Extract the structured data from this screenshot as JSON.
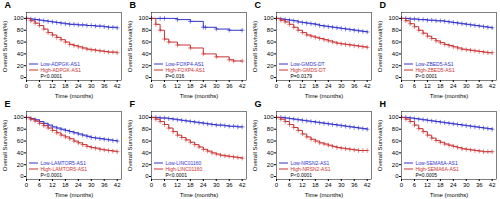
{
  "chart_data": [
    {
      "type": "line",
      "title": "A",
      "xlabel": "Time (months)",
      "ylabel": "Overall Survival(%)",
      "xlim": [
        0,
        44
      ],
      "ylim": [
        -5,
        110
      ],
      "xticks": [
        0,
        6,
        12,
        18,
        24,
        30,
        36,
        42
      ],
      "yticks": [
        0,
        20,
        40,
        60,
        80,
        100
      ],
      "line_style": "steps",
      "marker": "plus",
      "legend": "lower left",
      "annotation": "P<0.0001",
      "series": [
        {
          "name": "Low-ADPGK-AS1",
          "color": "#3333cc",
          "x": [
            0,
            2,
            4,
            6,
            8,
            10,
            12,
            14,
            16,
            18,
            20,
            22,
            24,
            26,
            28,
            30,
            32,
            34,
            36,
            38,
            40,
            42
          ],
          "values": [
            100,
            99,
            98,
            97,
            96,
            95,
            94,
            93,
            92,
            91,
            90,
            90,
            89,
            89,
            88,
            88,
            87,
            87,
            86,
            85,
            85,
            84
          ]
        },
        {
          "name": "High-ADPGK-AS1",
          "color": "#cc3333",
          "x": [
            0,
            2,
            4,
            6,
            8,
            10,
            12,
            14,
            16,
            18,
            20,
            22,
            24,
            26,
            28,
            30,
            32,
            34,
            36,
            38,
            40,
            42
          ],
          "values": [
            100,
            96,
            92,
            88,
            82,
            76,
            72,
            68,
            64,
            60,
            56,
            54,
            52,
            50,
            48,
            47,
            46,
            45,
            44,
            43,
            43,
            42
          ]
        }
      ]
    },
    {
      "type": "line",
      "title": "B",
      "xlabel": "Time (months)",
      "ylabel": "Overall Survival(%)",
      "xlim": [
        0,
        44
      ],
      "ylim": [
        -5,
        110
      ],
      "xticks": [
        0,
        6,
        12,
        18,
        24,
        30,
        36,
        42
      ],
      "yticks": [
        0,
        20,
        40,
        60,
        80,
        100
      ],
      "line_style": "steps",
      "marker": "plus",
      "legend": "lower left",
      "annotation": "P=0.016",
      "series": [
        {
          "name": "Low-FOXP4-AS1",
          "color": "#3333cc",
          "x": [
            0,
            4,
            6,
            12,
            18,
            24,
            25,
            30,
            36,
            42
          ],
          "values": [
            100,
            100,
            100,
            98,
            95,
            85,
            85,
            82,
            80,
            80
          ]
        },
        {
          "name": "High-FOXP4-AS1",
          "color": "#cc3333",
          "x": [
            0,
            2,
            4,
            6,
            8,
            12,
            18,
            24,
            30,
            36,
            38,
            42
          ],
          "values": [
            100,
            90,
            80,
            65,
            60,
            55,
            50,
            40,
            35,
            30,
            28,
            28
          ]
        }
      ]
    },
    {
      "type": "line",
      "title": "C",
      "xlabel": "Time (months)",
      "ylabel": "Overall Survival(%)",
      "xlim": [
        0,
        44
      ],
      "ylim": [
        -5,
        110
      ],
      "xticks": [
        0,
        6,
        12,
        18,
        24,
        30,
        36,
        42
      ],
      "yticks": [
        0,
        20,
        40,
        60,
        80,
        100
      ],
      "line_style": "steps",
      "marker": "plus",
      "legend": "lower left",
      "annotation": "P=0.0179",
      "series": [
        {
          "name": "Low-GMDS-DT",
          "color": "#3333cc",
          "x": [
            0,
            2,
            4,
            6,
            8,
            10,
            12,
            14,
            16,
            18,
            20,
            22,
            24,
            26,
            28,
            30,
            32,
            34,
            36,
            38,
            40,
            42
          ],
          "values": [
            100,
            99,
            98,
            97,
            96,
            94,
            93,
            92,
            91,
            90,
            88,
            87,
            86,
            85,
            84,
            83,
            82,
            81,
            80,
            79,
            78,
            77
          ]
        },
        {
          "name": "High-GMDS-DT",
          "color": "#cc3333",
          "x": [
            0,
            2,
            4,
            6,
            8,
            10,
            12,
            14,
            16,
            18,
            20,
            22,
            24,
            26,
            28,
            30,
            32,
            34,
            36,
            38,
            40,
            42
          ],
          "values": [
            100,
            97,
            94,
            90,
            85,
            80,
            76,
            72,
            70,
            68,
            66,
            64,
            62,
            60,
            58,
            57,
            56,
            55,
            54,
            53,
            52,
            51
          ]
        }
      ]
    },
    {
      "type": "line",
      "title": "D",
      "xlabel": "Time (months)",
      "ylabel": "Overall Survival(%)",
      "xlim": [
        0,
        44
      ],
      "ylim": [
        -5,
        110
      ],
      "xticks": [
        0,
        6,
        12,
        18,
        24,
        30,
        36,
        42
      ],
      "yticks": [
        0,
        20,
        40,
        60,
        80,
        100
      ],
      "line_style": "steps",
      "marker": "plus",
      "legend": "lower left",
      "annotation": "P<0.0001",
      "series": [
        {
          "name": "Low-ZBED5-AS1",
          "color": "#3333cc",
          "x": [
            0,
            2,
            4,
            6,
            8,
            10,
            12,
            14,
            16,
            18,
            20,
            22,
            24,
            26,
            28,
            30,
            32,
            34,
            36,
            38,
            40,
            42
          ],
          "values": [
            100,
            100,
            99,
            99,
            98,
            98,
            97,
            97,
            96,
            96,
            95,
            94,
            93,
            92,
            91,
            90,
            89,
            88,
            87,
            86,
            85,
            84
          ]
        },
        {
          "name": "High-ZBED5-AS1",
          "color": "#cc3333",
          "x": [
            0,
            2,
            4,
            6,
            8,
            10,
            12,
            14,
            16,
            18,
            20,
            22,
            24,
            26,
            28,
            30,
            32,
            34,
            36,
            38,
            40,
            42
          ],
          "values": [
            100,
            96,
            91,
            86,
            80,
            75,
            70,
            66,
            62,
            59,
            56,
            54,
            52,
            50,
            48,
            47,
            46,
            45,
            44,
            43,
            42,
            42
          ]
        }
      ]
    },
    {
      "type": "line",
      "title": "E",
      "xlabel": "Time (months)",
      "ylabel": "Overall Survival(%)",
      "xlim": [
        0,
        44
      ],
      "ylim": [
        -5,
        110
      ],
      "xticks": [
        0,
        6,
        12,
        18,
        24,
        30,
        36,
        42
      ],
      "yticks": [
        0,
        20,
        40,
        60,
        80,
        100
      ],
      "line_style": "steps",
      "marker": "plus",
      "legend": "lower left",
      "annotation": "P<0.0001",
      "series": [
        {
          "name": "Low-LAMTOR5-AS1",
          "color": "#3333cc",
          "x": [
            0,
            2,
            4,
            6,
            8,
            10,
            12,
            14,
            16,
            18,
            20,
            22,
            24,
            26,
            28,
            30,
            32,
            34,
            36,
            38,
            40,
            42
          ],
          "values": [
            100,
            98,
            96,
            93,
            90,
            87,
            84,
            82,
            80,
            78,
            76,
            74,
            72,
            70,
            68,
            66,
            65,
            64,
            63,
            62,
            61,
            60
          ]
        },
        {
          "name": "High-LAMTOR5-AS1",
          "color": "#cc3333",
          "x": [
            0,
            2,
            4,
            6,
            8,
            10,
            12,
            14,
            16,
            18,
            20,
            22,
            24,
            26,
            28,
            30,
            32,
            34,
            36,
            38,
            40,
            42
          ],
          "values": [
            100,
            97,
            94,
            90,
            86,
            82,
            78,
            74,
            70,
            67,
            64,
            60,
            57,
            54,
            51,
            49,
            48,
            46,
            45,
            44,
            43,
            42
          ]
        }
      ]
    },
    {
      "type": "line",
      "title": "F",
      "xlabel": "Time (months)",
      "ylabel": "Overall Survival(%)",
      "xlim": [
        0,
        44
      ],
      "ylim": [
        -5,
        110
      ],
      "xticks": [
        0,
        6,
        12,
        18,
        24,
        30,
        36,
        42
      ],
      "yticks": [
        0,
        20,
        40,
        60,
        80,
        100
      ],
      "line_style": "steps",
      "marker": "plus",
      "legend": "lower left",
      "annotation": "P<0.0001",
      "series": [
        {
          "name": "Low-LINC01160",
          "color": "#3333cc",
          "x": [
            0,
            2,
            4,
            6,
            8,
            10,
            12,
            14,
            16,
            18,
            20,
            22,
            24,
            26,
            28,
            30,
            32,
            34,
            36,
            38,
            40,
            42
          ],
          "values": [
            100,
            100,
            99,
            99,
            98,
            97,
            96,
            95,
            94,
            93,
            92,
            91,
            90,
            89,
            88,
            87,
            87,
            86,
            85,
            85,
            84,
            84
          ]
        },
        {
          "name": "High-LINC01160",
          "color": "#cc3333",
          "x": [
            0,
            2,
            4,
            6,
            8,
            10,
            12,
            14,
            16,
            18,
            20,
            22,
            24,
            26,
            28,
            30,
            32,
            34,
            36,
            38,
            40,
            42
          ],
          "values": [
            100,
            97,
            93,
            88,
            82,
            76,
            70,
            66,
            62,
            58,
            54,
            50,
            46,
            43,
            40,
            38,
            36,
            35,
            34,
            33,
            32,
            31
          ]
        }
      ]
    },
    {
      "type": "line",
      "title": "G",
      "xlabel": "Time (months)",
      "ylabel": "Overall Survival(%)",
      "xlim": [
        0,
        44
      ],
      "ylim": [
        -5,
        110
      ],
      "xticks": [
        0,
        6,
        12,
        18,
        24,
        30,
        36,
        42
      ],
      "yticks": [
        0,
        20,
        40,
        60,
        80,
        100
      ],
      "line_style": "steps",
      "marker": "plus",
      "legend": "lower left",
      "annotation": "P<0.0001",
      "series": [
        {
          "name": "Low-NRSN2-AS1",
          "color": "#3333cc",
          "x": [
            0,
            2,
            4,
            6,
            8,
            10,
            12,
            14,
            16,
            18,
            20,
            22,
            24,
            26,
            28,
            30,
            32,
            34,
            36,
            38,
            40,
            42
          ],
          "values": [
            100,
            100,
            99,
            98,
            97,
            96,
            95,
            94,
            93,
            92,
            91,
            90,
            89,
            88,
            87,
            86,
            85,
            84,
            83,
            82,
            81,
            80
          ]
        },
        {
          "name": "High-NRSN2-AS1",
          "color": "#cc3333",
          "x": [
            0,
            2,
            4,
            6,
            8,
            10,
            12,
            14,
            16,
            18,
            20,
            22,
            24,
            26,
            28,
            30,
            32,
            34,
            36,
            38,
            40,
            42
          ],
          "values": [
            100,
            97,
            93,
            88,
            83,
            78,
            72,
            67,
            63,
            60,
            57,
            55,
            53,
            51,
            49,
            48,
            47,
            46,
            45,
            44,
            44,
            44
          ]
        }
      ]
    },
    {
      "type": "line",
      "title": "H",
      "xlabel": "Time (months)",
      "ylabel": "Overall Survival(%)",
      "xlim": [
        0,
        44
      ],
      "ylim": [
        -5,
        110
      ],
      "xticks": [
        0,
        6,
        12,
        18,
        24,
        30,
        36,
        42
      ],
      "yticks": [
        0,
        20,
        40,
        60,
        80,
        100
      ],
      "line_style": "steps",
      "marker": "plus",
      "legend": "lower left",
      "annotation": "P=0.0005",
      "series": [
        {
          "name": "Low-SEMA6A-AS1",
          "color": "#3333cc",
          "x": [
            0,
            2,
            4,
            6,
            8,
            10,
            12,
            14,
            16,
            18,
            20,
            22,
            24,
            26,
            28,
            30,
            32,
            34,
            36,
            38,
            40,
            42
          ],
          "values": [
            100,
            100,
            99,
            98,
            97,
            96,
            95,
            94,
            93,
            92,
            91,
            90,
            89,
            88,
            87,
            86,
            85,
            84,
            83,
            82,
            81,
            80
          ]
        },
        {
          "name": "High-SEMA6A-AS1",
          "color": "#cc3333",
          "x": [
            0,
            2,
            4,
            6,
            8,
            10,
            12,
            14,
            16,
            18,
            20,
            22,
            24,
            26,
            28,
            30,
            32,
            34,
            36,
            38,
            40,
            42
          ],
          "values": [
            100,
            97,
            93,
            87,
            81,
            76,
            70,
            65,
            61,
            58,
            55,
            53,
            51,
            49,
            47,
            46,
            45,
            44,
            43,
            42,
            42,
            42
          ]
        }
      ]
    }
  ]
}
